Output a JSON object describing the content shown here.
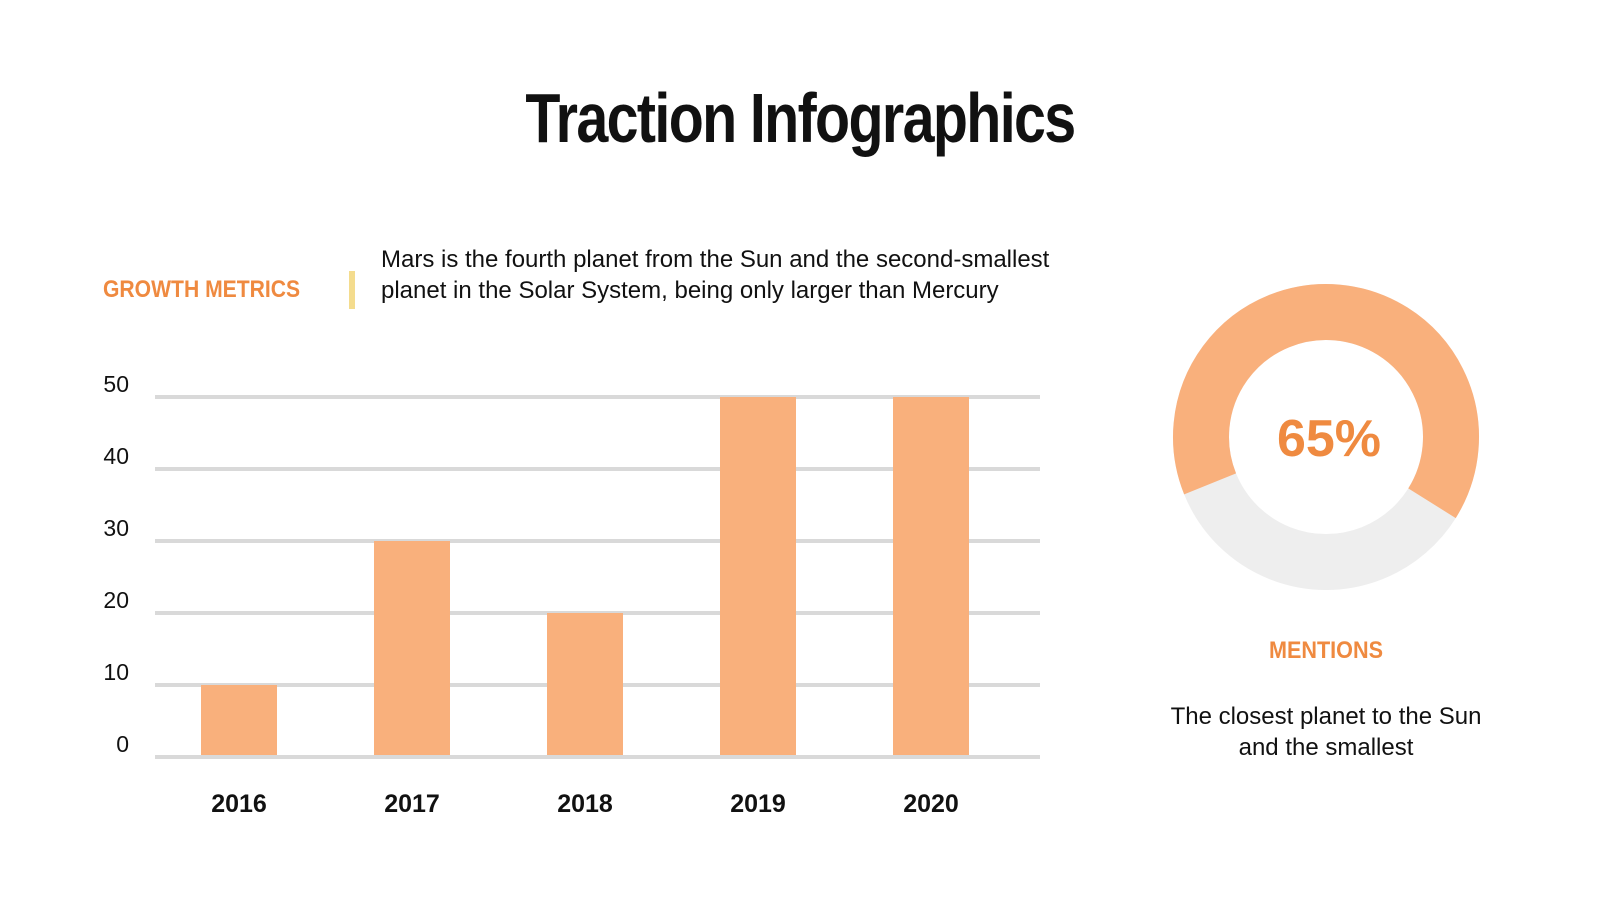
{
  "title": "Traction Infographics",
  "growth_label": "GROWTH METRICS",
  "description": "Mars is the fourth planet from the Sun and the second-smallest planet in the Solar System, being only larger than Mercury",
  "mentions_label": "MENTIONS",
  "mentions_description": "The closest planet to the Sun and the smallest",
  "colors": {
    "bar": "#f9b07c",
    "accent": "#ef8a40",
    "grid": "#d9d9d9",
    "donut_rest": "#eeeeee",
    "divider": "#f4dc8e"
  },
  "chart_data": [
    {
      "type": "bar",
      "categories": [
        "2016",
        "2017",
        "2018",
        "2019",
        "2020"
      ],
      "values": [
        10,
        30,
        20,
        50,
        50
      ],
      "ylim": [
        0,
        50
      ],
      "yticks": [
        "0",
        "10",
        "20",
        "30",
        "40",
        "50"
      ],
      "grid": true
    },
    {
      "type": "pie",
      "donut": true,
      "value": 65,
      "label": "65%"
    }
  ]
}
